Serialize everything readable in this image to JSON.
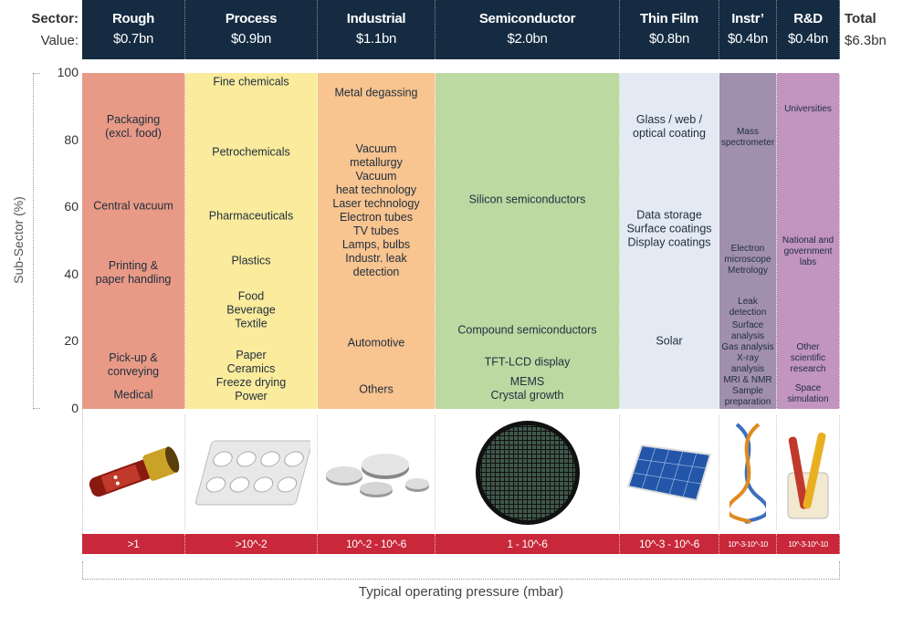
{
  "header": {
    "sector_label": "Sector:",
    "value_label": "Value:",
    "total_label": "Total",
    "total_value": "$6.3bn"
  },
  "sectors": [
    {
      "name": "Rough",
      "value": "$0.7bn",
      "color": "#e89a86",
      "pressure": ">1",
      "image": "vacuum-pump-hose-image",
      "subsectors": [
        "Packaging\n(excl. food)",
        "Central vacuum",
        "Printing &\npaper handling",
        "Pick-up &\nconveying",
        "Medical"
      ]
    },
    {
      "name": "Process",
      "value": "$0.9bn",
      "color": "#fbeb9c",
      "pressure": ">10^-2",
      "image": "pill-blister-pack-image",
      "subsectors": [
        "Fine chemicals",
        "Petrochemicals",
        "Pharmaceuticals",
        "Plastics",
        "Food\nBeverage\nTextile",
        "Paper\nCeramics\nFreeze drying\nPower"
      ]
    },
    {
      "name": "Industrial",
      "value": "$1.1bn",
      "color": "#f8c48f",
      "pressure": "10^-2 - 10^-6",
      "image": "metal-discs-image",
      "subsectors": [
        "Metal degassing",
        "Vacuum\nmetallurgy\nVacuum\nheat technology\nLaser technology\nElectron tubes\nTV tubes\nLamps, bulbs\nIndustr. leak\ndetection",
        "Automotive",
        "Others"
      ]
    },
    {
      "name": "Semiconductor",
      "value": "$2.0bn",
      "color": "#bcd9a2",
      "pressure": "1 - 10^-6",
      "image": "silicon-wafer-image",
      "subsectors": [
        "Silicon semiconductors",
        "Compound semiconductors",
        "TFT-LCD display",
        "MEMS\nCrystal growth"
      ]
    },
    {
      "name": "Thin Film",
      "value": "$0.8bn",
      "color": "#e3eaf3",
      "pressure": "10^-3 - 10^-6",
      "image": "solar-panel-image",
      "subsectors": [
        "Glass / web /\noptical coating",
        "Data storage\nSurface coatings\nDisplay coatings",
        "Solar"
      ]
    },
    {
      "name": "Instr’",
      "value": "$0.4bn",
      "color": "#a08fae",
      "pressure": "10^-3-10^-10",
      "image": "dna-helix-image",
      "subsectors": [
        "Mass\nspectrometer",
        "Electron\nmicroscope\nMetrology",
        "Leak\ndetection",
        "Surface\nanalysis\nGas analysis\nX-ray analysis\nMRI & NMR\nSample\npreparation"
      ]
    },
    {
      "name": "R&D",
      "value": "$0.4bn",
      "color": "#c294c0",
      "pressure": "10^-3-10^-10",
      "image": "test-tubes-image",
      "subsectors": [
        "Universities",
        "National and\ngovernment\nlabs",
        "Other\nscientific\nresearch",
        "Space\nsimulation"
      ]
    }
  ],
  "axis": {
    "ylabel": "Sub-Sector (%)",
    "ticks": [
      "100",
      "80",
      "60",
      "40",
      "20",
      "0"
    ],
    "xlabel": "Typical operating pressure (mbar)"
  },
  "colors": {
    "header": "#142b41",
    "pressure_bar": "#c8283a"
  }
}
